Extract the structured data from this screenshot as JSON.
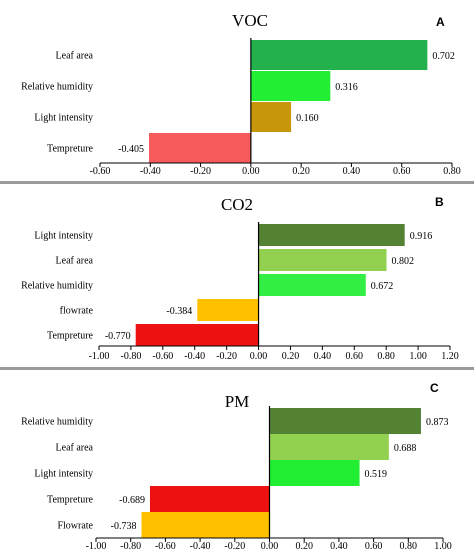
{
  "chart_data": [
    {
      "type": "bar",
      "orientation": "horizontal",
      "title": "VOC",
      "panel_label": "A",
      "categories": [
        "Leaf area",
        "Relative humidity",
        "Light intensity",
        "Tempreture"
      ],
      "values": [
        0.702,
        0.316,
        0.16,
        -0.405
      ],
      "value_labels": [
        "0.702",
        "0.316",
        "0.160",
        "-0.405"
      ],
      "colors": [
        "#22b14c",
        "#22ee33",
        "#c8960a",
        "#f75a5a"
      ],
      "xlim": [
        -0.6,
        0.8
      ],
      "xticks": [
        -0.6,
        -0.4,
        -0.2,
        0.0,
        0.2,
        0.4,
        0.6,
        0.8
      ],
      "xtick_labels": [
        "-0.60",
        "-0.40",
        "-0.20",
        "0.00",
        "0.20",
        "0.40",
        "0.60",
        "0.80"
      ],
      "grid": false,
      "legend": "none"
    },
    {
      "type": "bar",
      "orientation": "horizontal",
      "title": "CO2",
      "panel_label": "B",
      "categories": [
        "Light intensity",
        "Leaf area",
        "Relative humidity",
        "flowrate",
        "Tempreture"
      ],
      "values": [
        0.916,
        0.802,
        0.672,
        -0.384,
        -0.77
      ],
      "value_labels": [
        "0.916",
        "0.802",
        "0.672",
        "-0.384",
        "-0.770"
      ],
      "colors": [
        "#548235",
        "#92d050",
        "#33ee44",
        "#ffc000",
        "#ee1111"
      ],
      "xlim": [
        -1.0,
        1.2
      ],
      "xticks": [
        -1.0,
        -0.8,
        -0.6,
        -0.4,
        -0.2,
        0.0,
        0.2,
        0.4,
        0.6,
        0.8,
        1.0,
        1.2
      ],
      "xtick_labels": [
        "-1.00",
        "-0.80",
        "-0.60",
        "-0.40",
        "-0.20",
        "0.00",
        "0.20",
        "0.40",
        "0.60",
        "0.80",
        "1.00",
        "1.20"
      ],
      "grid": false,
      "legend": "none"
    },
    {
      "type": "bar",
      "orientation": "horizontal",
      "title": "PM",
      "panel_label": "C",
      "categories": [
        "Relative humidity",
        "Leaf area",
        "Light intensity",
        "Tempreture",
        "Flowrate"
      ],
      "values": [
        0.873,
        0.688,
        0.519,
        -0.689,
        -0.738
      ],
      "value_labels": [
        "0.873",
        "0.688",
        "0.519",
        "-0.689",
        "-0.738"
      ],
      "colors": [
        "#548235",
        "#92d050",
        "#22ee33",
        "#ee1111",
        "#ffc000"
      ],
      "xlim": [
        -1.0,
        1.0
      ],
      "xticks": [
        -1.0,
        -0.8,
        -0.6,
        -0.4,
        -0.2,
        0.0,
        0.2,
        0.4,
        0.6,
        0.8,
        1.0
      ],
      "xtick_labels": [
        "-1.00",
        "-0.80",
        "-0.60",
        "-0.40",
        "-0.20",
        "0.00",
        "0.20",
        "0.40",
        "0.60",
        "0.80",
        "1.00"
      ],
      "grid": false,
      "legend": "none"
    }
  ]
}
